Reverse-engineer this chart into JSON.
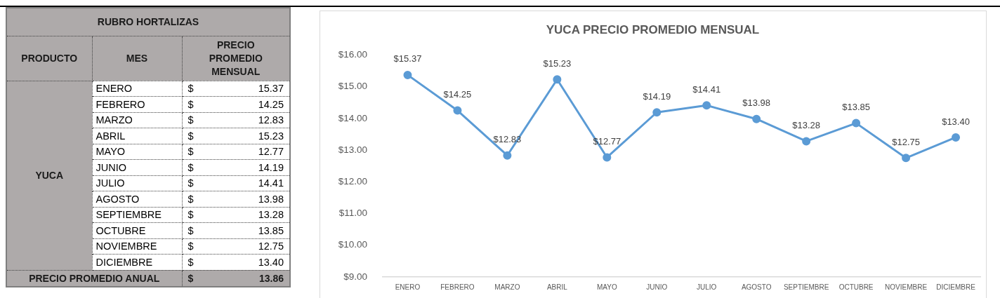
{
  "chart_data": [
    {
      "type": "other",
      "title": "RUBRO HORTALIZAS",
      "legend_title": "PRODUCTO",
      "xlabel": "MES",
      "ylabel": "PRECIO PROMEDIO MENSUAL",
      "categories": [
        "ENERO",
        "FEBRERO",
        "MARZO",
        "ABRIL",
        "MAYO",
        "JUNIO",
        "JULIO",
        "AGOSTO",
        "SEPTIEMBRE",
        "OCTUBRE",
        "NOVIEMBRE",
        "DICIEMBRE"
      ],
      "series": [
        {
          "name": "YUCA",
          "values": [
            15.37,
            14.25,
            12.83,
            15.23,
            12.77,
            14.19,
            14.41,
            13.98,
            13.28,
            13.85,
            12.75,
            13.4
          ],
          "value_labels": [
            "$ 15.37",
            "$ 14.25",
            "$ 12.83",
            "$ 15.23",
            "$ 12.77",
            "$ 14.19",
            "$ 14.41",
            "$ 13.98",
            "$ 13.28",
            "$ 13.85",
            "$ 12.75",
            "$ 13.40"
          ]
        }
      ],
      "annotations": [
        "PRECIO PROMEDIO ANUAL",
        "$ 13.86"
      ]
    },
    {
      "type": "line",
      "title": "YUCA PRECIO PROMEDIO MENSUAL",
      "categories": [
        "ENERO",
        "FEBRERO",
        "MARZO",
        "ABRIL",
        "MAYO",
        "JUNIO",
        "JULIO",
        "AGOSTO",
        "SEPTIEMBRE",
        "OCTUBRE",
        "NOVIEMBRE",
        "DICIEMBRE"
      ],
      "series": [
        {
          "color": "#5b9bd5",
          "values": [
            15.37,
            14.25,
            12.83,
            15.23,
            12.77,
            14.19,
            14.41,
            13.98,
            13.28,
            13.85,
            12.75,
            13.4
          ],
          "value_labels": [
            "$15.37",
            "$14.25",
            "$12.83",
            "$15.23",
            "$12.77",
            "$14.19",
            "$14.41",
            "$13.98",
            "$13.28",
            "$13.85",
            "$12.75",
            "$13.40"
          ]
        }
      ],
      "ylim": [
        9,
        16
      ],
      "yticks": [
        {
          "value": 9,
          "label": "$9.00"
        },
        {
          "value": 10,
          "label": "$10.00"
        },
        {
          "value": 11,
          "label": "$11.00"
        },
        {
          "value": 12,
          "label": "$12.00"
        },
        {
          "value": 13,
          "label": "$13.00"
        },
        {
          "value": 14,
          "label": "$14.00"
        },
        {
          "value": 15,
          "label": "$15.00"
        },
        {
          "value": 16,
          "label": "$16.00"
        }
      ],
      "marker": "circle",
      "line_style": "solid"
    }
  ]
}
